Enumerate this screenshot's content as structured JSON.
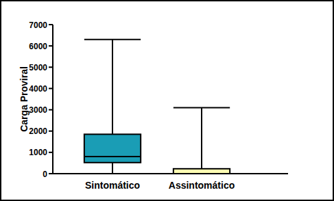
{
  "chart_data": {
    "type": "box",
    "y_label": "Carga Proviral",
    "categories": [
      "Sintomático",
      "Assintomático"
    ],
    "min": [
      0,
      0
    ],
    "q1": [
      520,
      0
    ],
    "median": [
      800,
      0
    ],
    "q3": [
      1850,
      230
    ],
    "max": [
      6300,
      3100
    ],
    "colors": [
      "#1a9db5",
      "#ffffb3"
    ],
    "ylim": [
      0,
      7000
    ],
    "yticks": [
      0,
      1000,
      2000,
      3000,
      4000,
      5000,
      6000,
      7000
    ],
    "grid": false
  }
}
